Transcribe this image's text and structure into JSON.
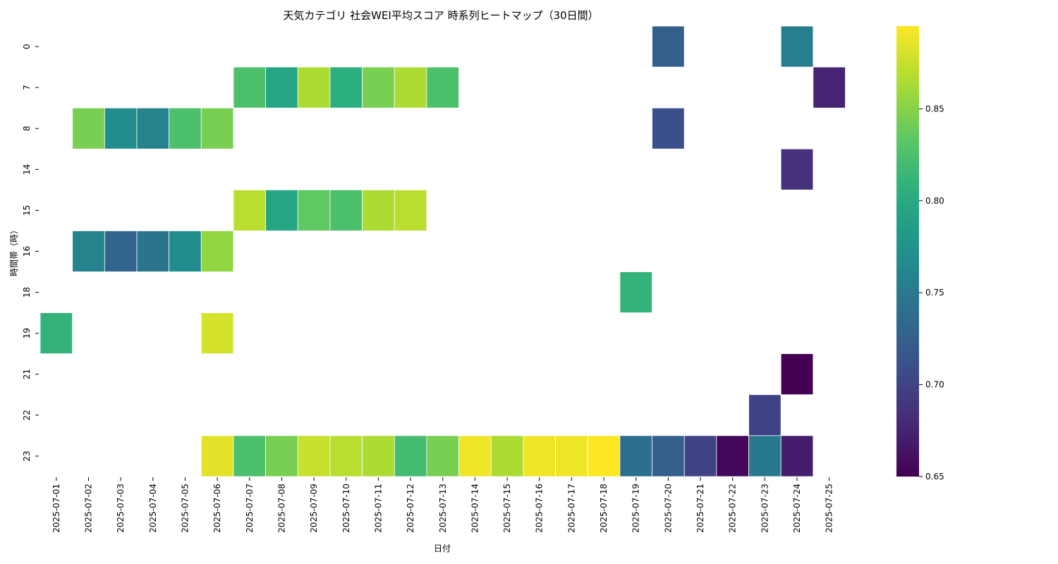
{
  "chart_data": {
    "type": "heatmap",
    "title": "天気カテゴリ 社会WEI平均スコア 時系列ヒートマップ（30日間）",
    "xlabel": "日付",
    "ylabel": "時間帯（時）",
    "x": [
      "2025-07-01",
      "2025-07-02",
      "2025-07-03",
      "2025-07-04",
      "2025-07-05",
      "2025-07-06",
      "2025-07-07",
      "2025-07-08",
      "2025-07-09",
      "2025-07-10",
      "2025-07-11",
      "2025-07-12",
      "2025-07-13",
      "2025-07-14",
      "2025-07-15",
      "2025-07-16",
      "2025-07-17",
      "2025-07-18",
      "2025-07-19",
      "2025-07-20",
      "2025-07-21",
      "2025-07-22",
      "2025-07-23",
      "2025-07-24",
      "2025-07-25"
    ],
    "y": [
      "0",
      "7",
      "8",
      "14",
      "15",
      "16",
      "18",
      "19",
      "21",
      "22",
      "23"
    ],
    "values": [
      [
        null,
        null,
        null,
        null,
        null,
        null,
        null,
        null,
        null,
        null,
        null,
        null,
        null,
        null,
        null,
        null,
        null,
        null,
        null,
        0.725,
        null,
        null,
        null,
        0.755,
        null
      ],
      [
        null,
        null,
        null,
        null,
        null,
        null,
        0.825,
        0.795,
        0.865,
        0.805,
        0.845,
        0.865,
        0.825,
        null,
        null,
        null,
        null,
        null,
        null,
        null,
        null,
        null,
        null,
        null,
        0.675
      ],
      [
        null,
        0.845,
        0.77,
        0.76,
        0.825,
        0.845,
        null,
        null,
        null,
        null,
        null,
        null,
        null,
        null,
        null,
        null,
        null,
        null,
        null,
        0.71,
        null,
        null,
        null,
        null,
        null
      ],
      [
        null,
        null,
        null,
        null,
        null,
        null,
        null,
        null,
        null,
        null,
        null,
        null,
        null,
        null,
        null,
        null,
        null,
        null,
        null,
        null,
        null,
        null,
        null,
        0.685,
        null
      ],
      [
        null,
        null,
        null,
        null,
        null,
        null,
        0.87,
        0.795,
        0.835,
        0.825,
        0.865,
        0.87,
        null,
        null,
        null,
        null,
        null,
        null,
        null,
        null,
        null,
        null,
        null,
        null,
        null
      ],
      [
        null,
        0.76,
        0.73,
        0.745,
        0.77,
        0.855,
        null,
        null,
        null,
        null,
        null,
        null,
        null,
        null,
        null,
        null,
        null,
        null,
        null,
        null,
        null,
        null,
        null,
        null,
        null
      ],
      [
        null,
        null,
        null,
        null,
        null,
        null,
        null,
        null,
        null,
        null,
        null,
        null,
        null,
        null,
        null,
        null,
        null,
        null,
        0.81,
        null,
        null,
        null,
        null,
        null,
        null
      ],
      [
        0.81,
        null,
        null,
        null,
        null,
        0.88,
        null,
        null,
        null,
        null,
        null,
        null,
        null,
        null,
        null,
        null,
        null,
        null,
        null,
        null,
        null,
        null,
        null,
        null,
        null
      ],
      [
        null,
        null,
        null,
        null,
        null,
        null,
        null,
        null,
        null,
        null,
        null,
        null,
        null,
        null,
        null,
        null,
        null,
        null,
        null,
        null,
        null,
        null,
        null,
        0.65,
        null
      ],
      [
        null,
        null,
        null,
        null,
        null,
        null,
        null,
        null,
        null,
        null,
        null,
        null,
        null,
        null,
        null,
        null,
        null,
        null,
        null,
        null,
        null,
        null,
        0.7,
        null,
        null
      ],
      [
        null,
        null,
        null,
        null,
        null,
        0.885,
        0.825,
        0.845,
        0.875,
        0.87,
        0.865,
        0.82,
        0.845,
        0.89,
        0.865,
        0.89,
        0.89,
        0.895,
        0.74,
        0.725,
        0.7,
        0.655,
        0.75,
        0.67,
        null
      ]
    ],
    "colorbar": {
      "min": 0.65,
      "max": 0.895,
      "ticks": [
        "0.65",
        "0.70",
        "0.75",
        "0.80",
        "0.85"
      ],
      "colormap": "viridis"
    },
    "grid": false,
    "legend": "colorbar-right"
  }
}
